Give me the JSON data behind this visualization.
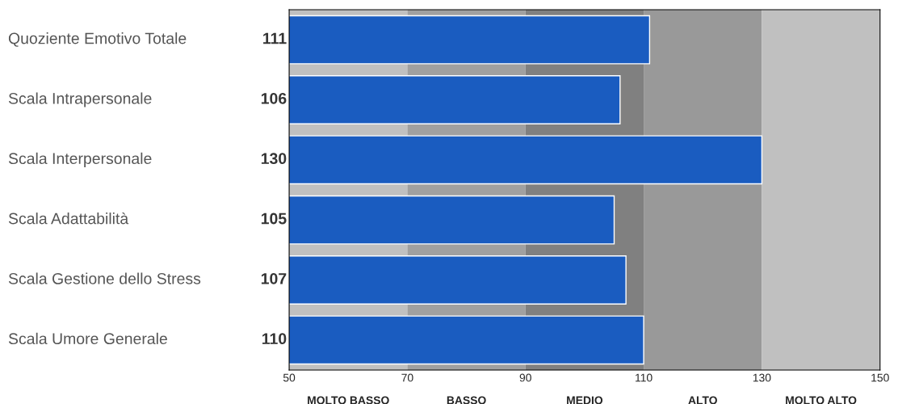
{
  "chart_data": {
    "type": "bar",
    "orientation": "horizontal",
    "categories": [
      "Quoziente Emotivo Totale",
      "Scala Intrapersonale",
      "Scala Interpersonale",
      "Scala Adattabilità",
      "Scala Gestione dello Stress",
      "Scala Umore Generale"
    ],
    "values": [
      111,
      106,
      130,
      105,
      107,
      110
    ],
    "color": "#1a5cc0",
    "data_labels": true,
    "xlim": [
      50,
      150
    ],
    "xticks": [
      50,
      70,
      90,
      110,
      130,
      150
    ],
    "bands": [
      {
        "axis": "x",
        "from": 50,
        "to": 70,
        "label": "MOLTO BASSO",
        "color": "#c0c0c0"
      },
      {
        "axis": "x",
        "from": 70,
        "to": 90,
        "label": "BASSO",
        "color": "#a0a0a0"
      },
      {
        "axis": "x",
        "from": 90,
        "to": 110,
        "label": "MEDIO",
        "color": "#808080"
      },
      {
        "axis": "x",
        "from": 110,
        "to": 130,
        "label": "ALTO",
        "color": "#999999"
      },
      {
        "axis": "x",
        "from": 130,
        "to": 150,
        "label": "MOLTO ALTO",
        "color": "#c0c0c0"
      }
    ],
    "grid": false,
    "legend": false
  }
}
